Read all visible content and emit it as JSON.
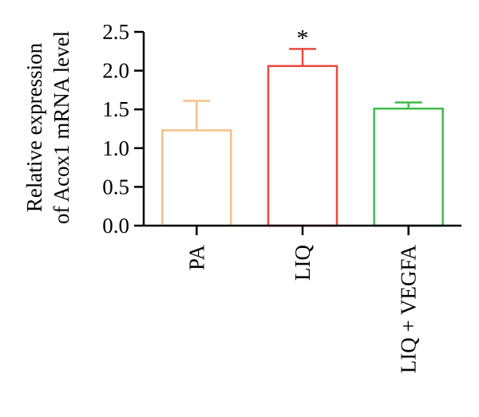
{
  "chart_data": {
    "type": "bar",
    "title": "",
    "ylabel_lines": [
      "Relative expression",
      "of Acox1 mRNA level"
    ],
    "xlabel": "",
    "categories": [
      "PA",
      "LIQ",
      "LIQ + VEGFA"
    ],
    "values": [
      1.23,
      2.06,
      1.51
    ],
    "errors": [
      0.38,
      0.22,
      0.08
    ],
    "colors": [
      "#f5c088",
      "#e84a3f",
      "#3fbb4c"
    ],
    "annotations": [
      "",
      "*",
      ""
    ],
    "ylim": [
      0,
      2.5
    ],
    "yticks": [
      "0.0",
      "0.5",
      "1.0",
      "1.5",
      "2.0",
      "2.5"
    ],
    "grid": false,
    "legend": "none"
  }
}
